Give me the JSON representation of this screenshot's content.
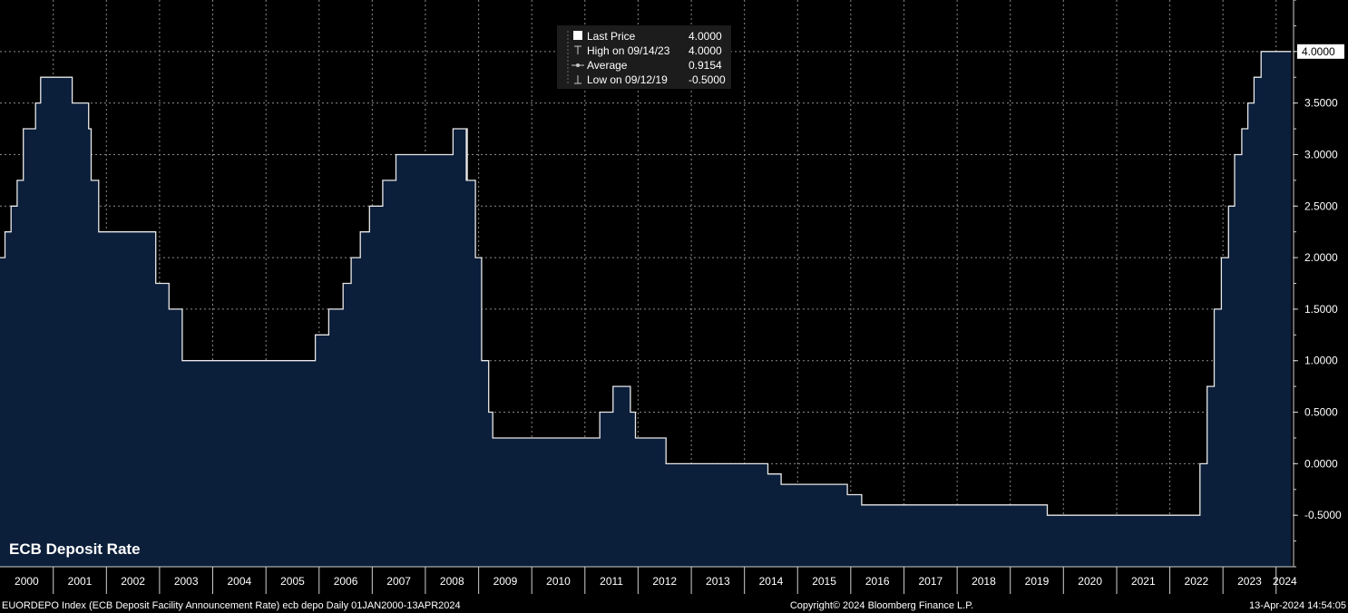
{
  "chart_data": {
    "type": "area",
    "title": "ECB Deposit Rate",
    "x_unit": "date",
    "ylim": [
      -1.0,
      4.5
    ],
    "y_ticks": [
      "-0.5000",
      "0.0000",
      "0.5000",
      "1.0000",
      "1.5000",
      "2.0000",
      "2.5000",
      "3.0000",
      "3.5000",
      "4.0000"
    ],
    "x_ticks": [
      "2000",
      "2001",
      "2002",
      "2003",
      "2004",
      "2005",
      "2006",
      "2007",
      "2008",
      "2009",
      "2010",
      "2011",
      "2012",
      "2013",
      "2014",
      "2015",
      "2016",
      "2017",
      "2018",
      "2019",
      "2020",
      "2021",
      "2022",
      "2023",
      "2024"
    ],
    "grid": true,
    "legend_position": "top-center",
    "last_value_label": "4.0000",
    "series": [
      {
        "name": "Last Price",
        "color": "#e8e8e8",
        "fill": "#0b1e3a",
        "step": true,
        "points": [
          [
            "2000-01-01",
            2.0
          ],
          [
            "2000-02-04",
            2.25
          ],
          [
            "2000-03-17",
            2.5
          ],
          [
            "2000-04-28",
            2.75
          ],
          [
            "2000-06-09",
            3.25
          ],
          [
            "2000-09-01",
            3.5
          ],
          [
            "2000-10-06",
            3.75
          ],
          [
            "2001-05-11",
            3.5
          ],
          [
            "2001-09-01",
            3.25
          ],
          [
            "2001-09-18",
            2.75
          ],
          [
            "2001-11-09",
            2.25
          ],
          [
            "2002-12-06",
            1.75
          ],
          [
            "2003-03-07",
            1.5
          ],
          [
            "2003-06-06",
            1.0
          ],
          [
            "2005-12-06",
            1.25
          ],
          [
            "2006-03-08",
            1.5
          ],
          [
            "2006-06-15",
            1.75
          ],
          [
            "2006-08-09",
            2.0
          ],
          [
            "2006-10-11",
            2.25
          ],
          [
            "2006-12-13",
            2.5
          ],
          [
            "2007-03-14",
            2.75
          ],
          [
            "2007-06-13",
            3.0
          ],
          [
            "2008-07-09",
            3.25
          ],
          [
            "2008-10-08",
            2.75
          ],
          [
            "2008-10-09",
            3.25
          ],
          [
            "2008-10-15",
            2.75
          ],
          [
            "2008-11-12",
            2.75
          ],
          [
            "2008-12-10",
            2.0
          ],
          [
            "2009-01-21",
            1.0
          ],
          [
            "2009-03-11",
            0.5
          ],
          [
            "2009-04-08",
            0.25
          ],
          [
            "2011-04-13",
            0.5
          ],
          [
            "2011-07-13",
            0.75
          ],
          [
            "2011-11-09",
            0.5
          ],
          [
            "2011-12-14",
            0.25
          ],
          [
            "2012-07-11",
            0.0
          ],
          [
            "2014-06-11",
            -0.1
          ],
          [
            "2014-09-10",
            -0.2
          ],
          [
            "2015-12-09",
            -0.3
          ],
          [
            "2016-03-16",
            -0.4
          ],
          [
            "2019-09-12",
            -0.5
          ],
          [
            "2022-07-27",
            0.0
          ],
          [
            "2022-09-14",
            0.75
          ],
          [
            "2022-11-02",
            1.5
          ],
          [
            "2022-12-21",
            2.0
          ],
          [
            "2023-02-08",
            2.5
          ],
          [
            "2023-03-22",
            3.0
          ],
          [
            "2023-05-10",
            3.25
          ],
          [
            "2023-06-21",
            3.5
          ],
          [
            "2023-08-02",
            3.75
          ],
          [
            "2023-09-20",
            4.0
          ],
          [
            "2024-04-13",
            4.0
          ]
        ]
      }
    ],
    "legend": {
      "rows": [
        {
          "icon": "white-square-icon",
          "label": "Last Price",
          "value": "4.0000"
        },
        {
          "icon": "high-marker-icon",
          "label": "High on 09/14/23",
          "value": "4.0000"
        },
        {
          "icon": "average-marker-icon",
          "label": "Average",
          "value": "0.9154"
        },
        {
          "icon": "low-marker-icon",
          "label": "Low on 09/12/19",
          "value": "-0.5000"
        }
      ]
    },
    "footer": {
      "left": "EUORDEPO Index (ECB Deposit Facility Announcement Rate) ecb depo  Daily 01JAN2000-13APR2024",
      "center": "Copyright© 2024 Bloomberg Finance L.P.",
      "right": "13-Apr-2024 14:54:05"
    }
  }
}
